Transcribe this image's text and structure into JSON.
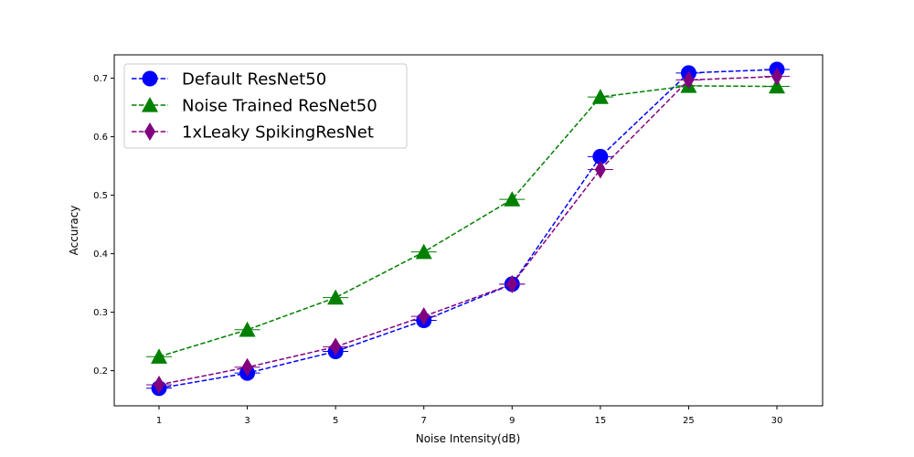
{
  "chart_data": {
    "type": "line",
    "categories": [
      "1",
      "3",
      "5",
      "7",
      "9",
      "15",
      "25",
      "30"
    ],
    "xlabel": "Noise Intensity(dB)",
    "ylabel": "Accuracy",
    "ylim": [
      0.14,
      0.74
    ],
    "yticks": [
      "0.2",
      "0.3",
      "0.4",
      "0.5",
      "0.6",
      "0.7"
    ],
    "grid": false,
    "legend_position": "top-left",
    "series": [
      {
        "name": "Default ResNet50",
        "marker": "circle",
        "color": "#0000ff",
        "values": [
          0.17,
          0.196,
          0.233,
          0.286,
          0.348,
          0.566,
          0.709,
          0.715
        ]
      },
      {
        "name": "Noise Trained ResNet50",
        "marker": "triangle-up",
        "color": "#008000",
        "values": [
          0.224,
          0.27,
          0.325,
          0.403,
          0.493,
          0.668,
          0.687,
          0.686
        ]
      },
      {
        "name": "1xLeaky SpikingResNet",
        "marker": "thin-diamond",
        "color": "#800080",
        "values": [
          0.176,
          0.206,
          0.241,
          0.293,
          0.348,
          0.544,
          0.697,
          0.703
        ]
      }
    ]
  }
}
